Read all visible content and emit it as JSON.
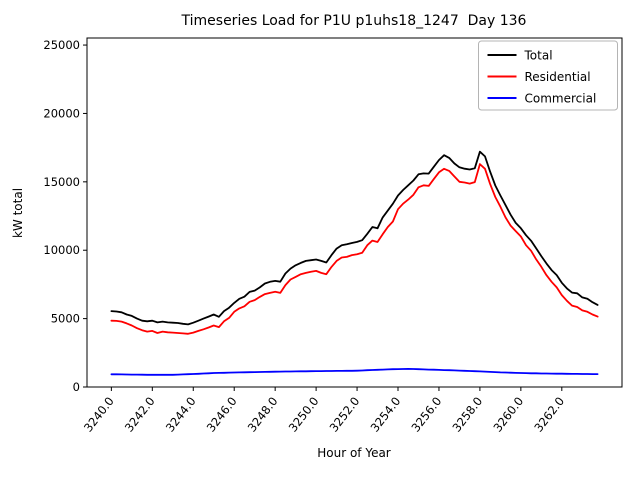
{
  "figure": {
    "background": "#ffffff",
    "title": "Timeseries Load for P1U p1uhs18_1247  Day 136"
  },
  "chart_data": {
    "type": "line",
    "title": "Timeseries Load for P1U p1uhs18_1247  Day 136",
    "xlabel": "Hour of Year",
    "ylabel": "kW total",
    "grid": false,
    "legend_position": "upper right",
    "xlim": [
      3238.81,
      3264.94
    ],
    "ylim": [
      0,
      25516
    ],
    "yticks": [
      0,
      5000,
      10000,
      15000,
      20000,
      25000
    ],
    "ytick_labels": [
      "0",
      "5000",
      "10000",
      "15000",
      "20000",
      "25000"
    ],
    "xticks": [
      3240,
      3242,
      3244,
      3246,
      3248,
      3250,
      3252,
      3254,
      3256,
      3258,
      3260,
      3262
    ],
    "xtick_labels": [
      "3240.0",
      "3242.0",
      "3244.0",
      "3246.0",
      "3248.0",
      "3250.0",
      "3252.0",
      "3254.0",
      "3256.0",
      "3258.0",
      "3260.0",
      "3262.0"
    ],
    "xtick_rotation_deg": 52,
    "x_start": 3240.0,
    "x_step": 0.25,
    "x_count": 96,
    "series": [
      {
        "name": "Total",
        "color": "#000000",
        "values": [
          5550,
          5520,
          5460,
          5300,
          5200,
          5000,
          4850,
          4800,
          4850,
          4720,
          4780,
          4720,
          4700,
          4680,
          4620,
          4580,
          4700,
          4850,
          5000,
          5150,
          5300,
          5130,
          5550,
          5800,
          6150,
          6450,
          6600,
          6950,
          7050,
          7280,
          7570,
          7690,
          7760,
          7700,
          8300,
          8660,
          8900,
          9070,
          9220,
          9270,
          9320,
          9220,
          9100,
          9640,
          10120,
          10370,
          10440,
          10530,
          10610,
          10730,
          11200,
          11700,
          11600,
          12400,
          12900,
          13400,
          14000,
          14400,
          14750,
          15100,
          15550,
          15620,
          15600,
          16100,
          16600,
          16950,
          16750,
          16350,
          16060,
          15960,
          15900,
          16000,
          17200,
          16860,
          15750,
          14730,
          14000,
          13300,
          12600,
          12000,
          11600,
          11100,
          10690,
          10130,
          9570,
          9040,
          8550,
          8180,
          7620,
          7210,
          6900,
          6850,
          6550,
          6450,
          6200,
          6000
        ]
      },
      {
        "name": "Residential",
        "color": "#ff0000",
        "values": [
          4850,
          4830,
          4780,
          4650,
          4500,
          4300,
          4150,
          4050,
          4100,
          3950,
          4050,
          4000,
          3980,
          3950,
          3920,
          3890,
          3980,
          4100,
          4220,
          4350,
          4500,
          4380,
          4800,
          5050,
          5500,
          5750,
          5900,
          6230,
          6350,
          6590,
          6790,
          6880,
          6960,
          6880,
          7450,
          7860,
          8050,
          8250,
          8340,
          8420,
          8490,
          8340,
          8250,
          8780,
          9220,
          9470,
          9510,
          9640,
          9710,
          9810,
          10370,
          10700,
          10600,
          11170,
          11700,
          12100,
          13000,
          13400,
          13700,
          14050,
          14600,
          14750,
          14700,
          15200,
          15700,
          15950,
          15800,
          15400,
          15000,
          14950,
          14870,
          14980,
          16300,
          15950,
          14850,
          13890,
          13180,
          12400,
          11800,
          11400,
          11000,
          10370,
          9960,
          9330,
          8790,
          8180,
          7690,
          7280,
          6720,
          6300,
          5950,
          5850,
          5600,
          5500,
          5300,
          5150
        ]
      },
      {
        "name": "Commercial",
        "color": "#0000ff",
        "values": [
          930,
          925,
          920,
          915,
          910,
          905,
          900,
          895,
          890,
          890,
          890,
          890,
          890,
          905,
          920,
          935,
          950,
          968,
          985,
          1003,
          1020,
          1030,
          1040,
          1050,
          1060,
          1068,
          1075,
          1083,
          1090,
          1098,
          1105,
          1113,
          1120,
          1125,
          1130,
          1135,
          1140,
          1145,
          1150,
          1155,
          1160,
          1164,
          1168,
          1171,
          1175,
          1179,
          1183,
          1186,
          1190,
          1208,
          1225,
          1243,
          1260,
          1273,
          1285,
          1298,
          1310,
          1315,
          1320,
          1315,
          1300,
          1288,
          1275,
          1263,
          1250,
          1238,
          1225,
          1213,
          1200,
          1185,
          1170,
          1155,
          1140,
          1123,
          1105,
          1088,
          1070,
          1058,
          1045,
          1033,
          1020,
          1013,
          1005,
          998,
          990,
          985,
          980,
          975,
          970,
          965,
          960,
          955,
          950,
          948,
          945,
          940
        ]
      }
    ]
  }
}
